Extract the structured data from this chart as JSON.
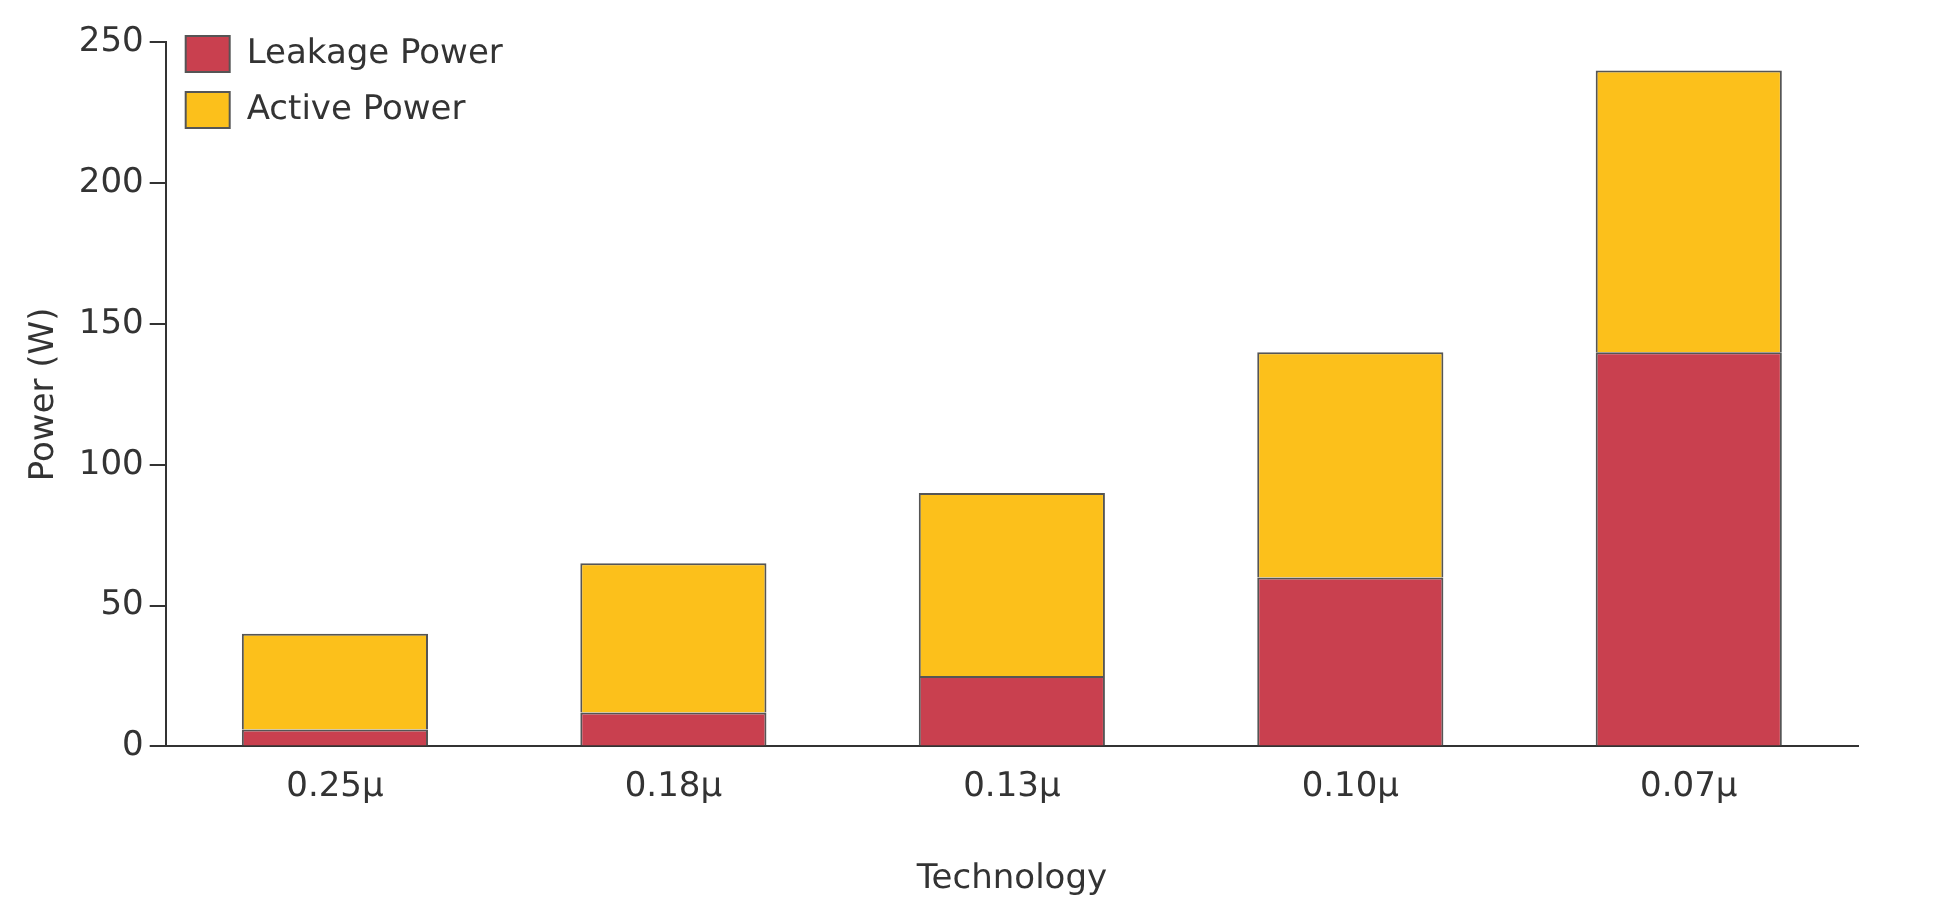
{
  "chart_data": {
    "type": "bar",
    "stacked": true,
    "xlabel": "Technology",
    "ylabel": "Power (W)",
    "categories": [
      "0.25µ",
      "0.18µ",
      "0.13µ",
      "0.10µ",
      "0.07µ"
    ],
    "series": [
      {
        "name": "Leakage Power",
        "color": "#c9404f",
        "values": [
          6,
          12,
          25,
          60,
          140
        ]
      },
      {
        "name": "Active Power",
        "color": "#fcc01b",
        "values": [
          34,
          53,
          65,
          80,
          100
        ]
      }
    ],
    "ylim": [
      0,
      250
    ],
    "yticks": [
      0,
      50,
      100,
      150,
      200,
      250
    ],
    "grid": false,
    "legend": "top left"
  }
}
